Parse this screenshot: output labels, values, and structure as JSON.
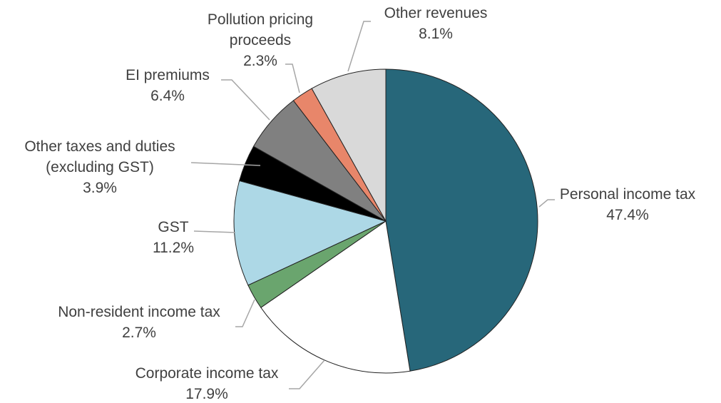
{
  "chart_data": {
    "type": "pie",
    "categories": [
      "Personal income tax",
      "Corporate income tax",
      "Non-resident income tax",
      "GST",
      "Other taxes and duties (excluding GST)",
      "EI premiums",
      "Pollution pricing proceeds",
      "Other revenues"
    ],
    "values": [
      47.4,
      17.9,
      2.7,
      11.2,
      3.9,
      6.4,
      2.3,
      8.1
    ],
    "value_labels": [
      "47.4%",
      "17.9%",
      "2.7%",
      "11.2%",
      "3.9%",
      "6.4%",
      "2.3%",
      "8.1%"
    ],
    "colors": [
      "#27677a",
      "#ffffff",
      "#6aa56e",
      "#add8e6",
      "#000000",
      "#808080",
      "#e8866a",
      "#d9d9d9"
    ]
  }
}
